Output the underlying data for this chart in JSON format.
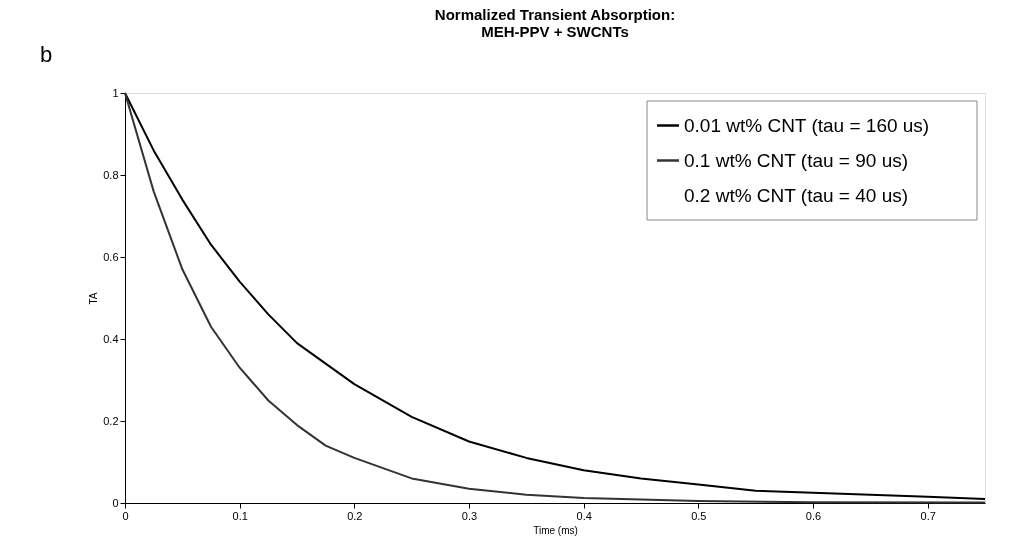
{
  "chart_data": {
    "type": "line",
    "title": "Normalized Transient Absorption:",
    "subtitle": "MEH-PPV + SWCNTs",
    "xlabel": "Time (ms)",
    "ylabel": "TA",
    "annotations": [
      "b",
      "0.2 wt% CNT (tau = 40 us)"
    ],
    "xlim": [
      0,
      0.75
    ],
    "xticks": [
      0,
      0.1,
      0.2,
      0.3,
      0.4,
      0.5,
      0.6,
      0.7
    ],
    "ylim": [
      0,
      1
    ],
    "yticks": [
      0,
      0.2,
      0.4,
      0.6,
      0.8,
      1
    ],
    "grid": false,
    "legend": "top right",
    "marker": "none",
    "line_style": "solid",
    "series": [
      {
        "name": "0.01 wt% CNT (tau = 160 us)",
        "color": "#000000",
        "x": [
          0,
          0.025,
          0.05,
          0.075,
          0.1,
          0.125,
          0.15,
          0.175,
          0.2,
          0.25,
          0.3,
          0.35,
          0.4,
          0.45,
          0.5,
          0.55,
          0.6,
          0.65,
          0.7,
          0.75
        ],
        "values": [
          1.0,
          0.86,
          0.74,
          0.63,
          0.54,
          0.46,
          0.39,
          0.34,
          0.29,
          0.21,
          0.15,
          0.11,
          0.08,
          0.06,
          0.045,
          0.03,
          0.025,
          0.02,
          0.015,
          0.01
        ]
      },
      {
        "name": "0.1 wt% CNT (tau  = 90 us)",
        "color": "#333333",
        "x": [
          0,
          0.025,
          0.05,
          0.075,
          0.1,
          0.125,
          0.15,
          0.175,
          0.2,
          0.25,
          0.3,
          0.35,
          0.4,
          0.5,
          0.6,
          0.75
        ],
        "values": [
          1.0,
          0.76,
          0.57,
          0.43,
          0.33,
          0.25,
          0.19,
          0.14,
          0.11,
          0.06,
          0.035,
          0.02,
          0.012,
          0.005,
          0.002,
          0.001
        ]
      }
    ]
  }
}
